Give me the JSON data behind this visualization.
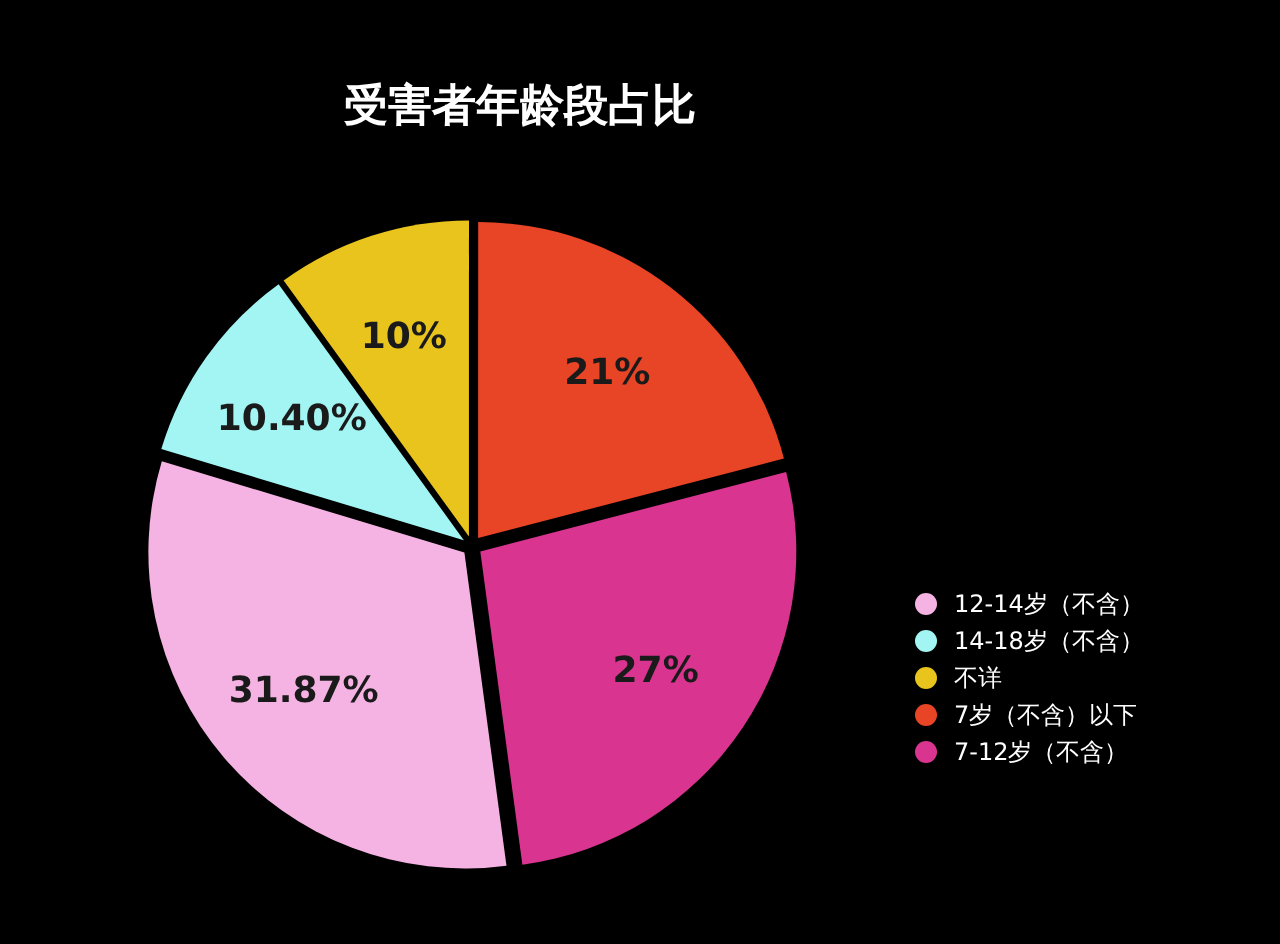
{
  "chart_data": {
    "type": "pie",
    "title": "受害者年龄段占比",
    "categories": [
      "12-14岁（不含）",
      "14-18岁（不含）",
      "不详",
      "7岁（不含）以下",
      "7-12岁（不含）"
    ],
    "values": [
      31.87,
      10.4,
      10,
      21,
      27
    ],
    "value_labels": [
      "31.87%",
      "10.40%",
      "10%",
      "21%",
      "27%"
    ],
    "colors": [
      "#f5b3e3",
      "#a3f5f3",
      "#e9c41c",
      "#e84526",
      "#d93590"
    ],
    "legend": "right"
  }
}
